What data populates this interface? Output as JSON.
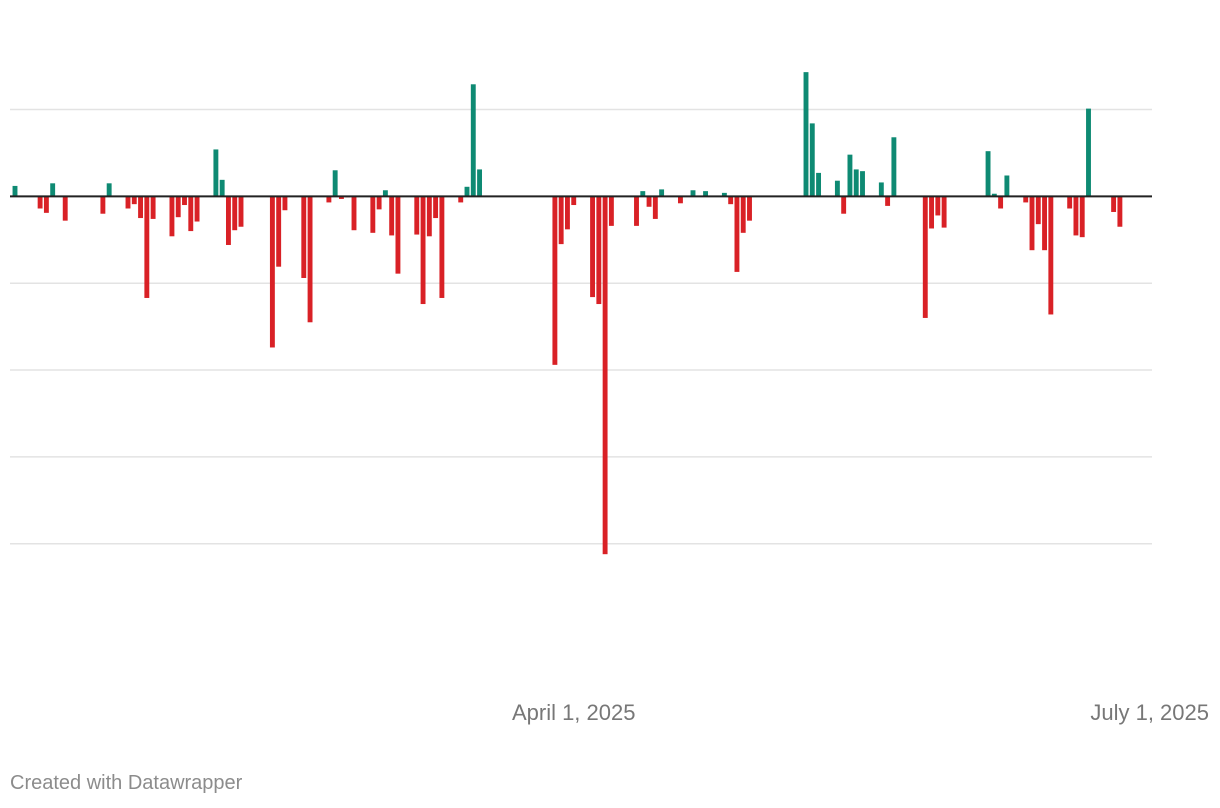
{
  "chart_data": {
    "type": "bar",
    "grid": true,
    "colors": {
      "positive": "#0e8a73",
      "negative": "#d92126",
      "zero_line": "#222222",
      "grid": "#e3e3e3"
    },
    "x_domain": [
      "2025-01-02",
      "2025-07-01"
    ],
    "x_ticks": [
      {
        "date": "2025-04-01",
        "label": "April 1, 2025"
      },
      {
        "date": "2025-07-01",
        "label": "July 1, 2025"
      }
    ],
    "ylim": [
      -5.2,
      1.8
    ],
    "y_gridlines": [
      1,
      -1,
      -2,
      -3,
      -4
    ],
    "points": [
      {
        "date": "2025-01-02",
        "value": 0.12
      },
      {
        "date": "2025-01-06",
        "value": -0.14
      },
      {
        "date": "2025-01-07",
        "value": -0.19
      },
      {
        "date": "2025-01-08",
        "value": 0.15
      },
      {
        "date": "2025-01-10",
        "value": -0.28
      },
      {
        "date": "2025-01-16",
        "value": -0.2
      },
      {
        "date": "2025-01-17",
        "value": 0.15
      },
      {
        "date": "2025-01-20",
        "value": -0.14
      },
      {
        "date": "2025-01-21",
        "value": -0.09
      },
      {
        "date": "2025-01-22",
        "value": -0.25
      },
      {
        "date": "2025-01-23",
        "value": -1.17
      },
      {
        "date": "2025-01-24",
        "value": -0.26
      },
      {
        "date": "2025-01-27",
        "value": -0.46
      },
      {
        "date": "2025-01-28",
        "value": -0.24
      },
      {
        "date": "2025-01-29",
        "value": -0.1
      },
      {
        "date": "2025-01-30",
        "value": -0.4
      },
      {
        "date": "2025-01-31",
        "value": -0.29
      },
      {
        "date": "2025-02-03",
        "value": 0.54
      },
      {
        "date": "2025-02-04",
        "value": 0.19
      },
      {
        "date": "2025-02-05",
        "value": -0.56
      },
      {
        "date": "2025-02-06",
        "value": -0.39
      },
      {
        "date": "2025-02-07",
        "value": -0.35
      },
      {
        "date": "2025-02-12",
        "value": -1.74
      },
      {
        "date": "2025-02-13",
        "value": -0.81
      },
      {
        "date": "2025-02-14",
        "value": -0.16
      },
      {
        "date": "2025-02-17",
        "value": -0.94
      },
      {
        "date": "2025-02-18",
        "value": -1.45
      },
      {
        "date": "2025-02-21",
        "value": -0.07
      },
      {
        "date": "2025-02-22",
        "value": 0.3
      },
      {
        "date": "2025-02-23",
        "value": -0.03
      },
      {
        "date": "2025-02-24",
        "value": -0.01
      },
      {
        "date": "2025-02-25",
        "value": -0.39
      },
      {
        "date": "2025-02-28",
        "value": -0.42
      },
      {
        "date": "2025-03-01",
        "value": -0.15
      },
      {
        "date": "2025-03-02",
        "value": 0.07
      },
      {
        "date": "2025-03-03",
        "value": -0.45
      },
      {
        "date": "2025-03-04",
        "value": -0.89
      },
      {
        "date": "2025-03-07",
        "value": -0.44
      },
      {
        "date": "2025-03-08",
        "value": -1.24
      },
      {
        "date": "2025-03-09",
        "value": -0.46
      },
      {
        "date": "2025-03-10",
        "value": -0.25
      },
      {
        "date": "2025-03-11",
        "value": -1.17
      },
      {
        "date": "2025-03-14",
        "value": -0.07
      },
      {
        "date": "2025-03-15",
        "value": 0.11
      },
      {
        "date": "2025-03-16",
        "value": 1.29
      },
      {
        "date": "2025-03-17",
        "value": 0.31
      },
      {
        "date": "2025-03-29",
        "value": -1.94
      },
      {
        "date": "2025-03-30",
        "value": -0.55
      },
      {
        "date": "2025-03-31",
        "value": -0.38
      },
      {
        "date": "2025-04-01",
        "value": -0.1
      },
      {
        "date": "2025-04-04",
        "value": -1.16
      },
      {
        "date": "2025-04-05",
        "value": -1.24
      },
      {
        "date": "2025-04-06",
        "value": -4.12
      },
      {
        "date": "2025-04-07",
        "value": -0.34
      },
      {
        "date": "2025-04-11",
        "value": -0.34
      },
      {
        "date": "2025-04-12",
        "value": 0.06
      },
      {
        "date": "2025-04-13",
        "value": -0.12
      },
      {
        "date": "2025-04-14",
        "value": -0.26
      },
      {
        "date": "2025-04-15",
        "value": 0.08
      },
      {
        "date": "2025-04-18",
        "value": -0.08
      },
      {
        "date": "2025-04-20",
        "value": 0.07
      },
      {
        "date": "2025-04-22",
        "value": 0.06
      },
      {
        "date": "2025-04-25",
        "value": 0.04
      },
      {
        "date": "2025-04-26",
        "value": -0.09
      },
      {
        "date": "2025-04-27",
        "value": -0.87
      },
      {
        "date": "2025-04-28",
        "value": -0.42
      },
      {
        "date": "2025-04-29",
        "value": -0.28
      },
      {
        "date": "2025-05-08",
        "value": 1.43
      },
      {
        "date": "2025-05-09",
        "value": 0.84
      },
      {
        "date": "2025-05-10",
        "value": 0.27
      },
      {
        "date": "2025-05-13",
        "value": 0.18
      },
      {
        "date": "2025-05-14",
        "value": -0.2
      },
      {
        "date": "2025-05-15",
        "value": 0.48
      },
      {
        "date": "2025-05-16",
        "value": 0.31
      },
      {
        "date": "2025-05-17",
        "value": 0.29
      },
      {
        "date": "2025-05-20",
        "value": 0.16
      },
      {
        "date": "2025-05-21",
        "value": -0.11
      },
      {
        "date": "2025-05-22",
        "value": 0.68
      },
      {
        "date": "2025-05-27",
        "value": -1.4
      },
      {
        "date": "2025-05-28",
        "value": -0.37
      },
      {
        "date": "2025-05-29",
        "value": -0.22
      },
      {
        "date": "2025-05-30",
        "value": -0.36
      },
      {
        "date": "2025-06-06",
        "value": 0.52
      },
      {
        "date": "2025-06-07",
        "value": 0.03
      },
      {
        "date": "2025-06-08",
        "value": -0.14
      },
      {
        "date": "2025-06-09",
        "value": 0.24
      },
      {
        "date": "2025-06-12",
        "value": -0.07
      },
      {
        "date": "2025-06-13",
        "value": -0.62
      },
      {
        "date": "2025-06-14",
        "value": -0.32
      },
      {
        "date": "2025-06-15",
        "value": -0.62
      },
      {
        "date": "2025-06-16",
        "value": -1.36
      },
      {
        "date": "2025-06-19",
        "value": -0.14
      },
      {
        "date": "2025-06-20",
        "value": -0.45
      },
      {
        "date": "2025-06-21",
        "value": -0.47
      },
      {
        "date": "2025-06-22",
        "value": 1.01
      },
      {
        "date": "2025-06-26",
        "value": -0.18
      },
      {
        "date": "2025-06-27",
        "value": -0.35
      }
    ]
  },
  "footer": {
    "credit": "Created with Datawrapper"
  }
}
